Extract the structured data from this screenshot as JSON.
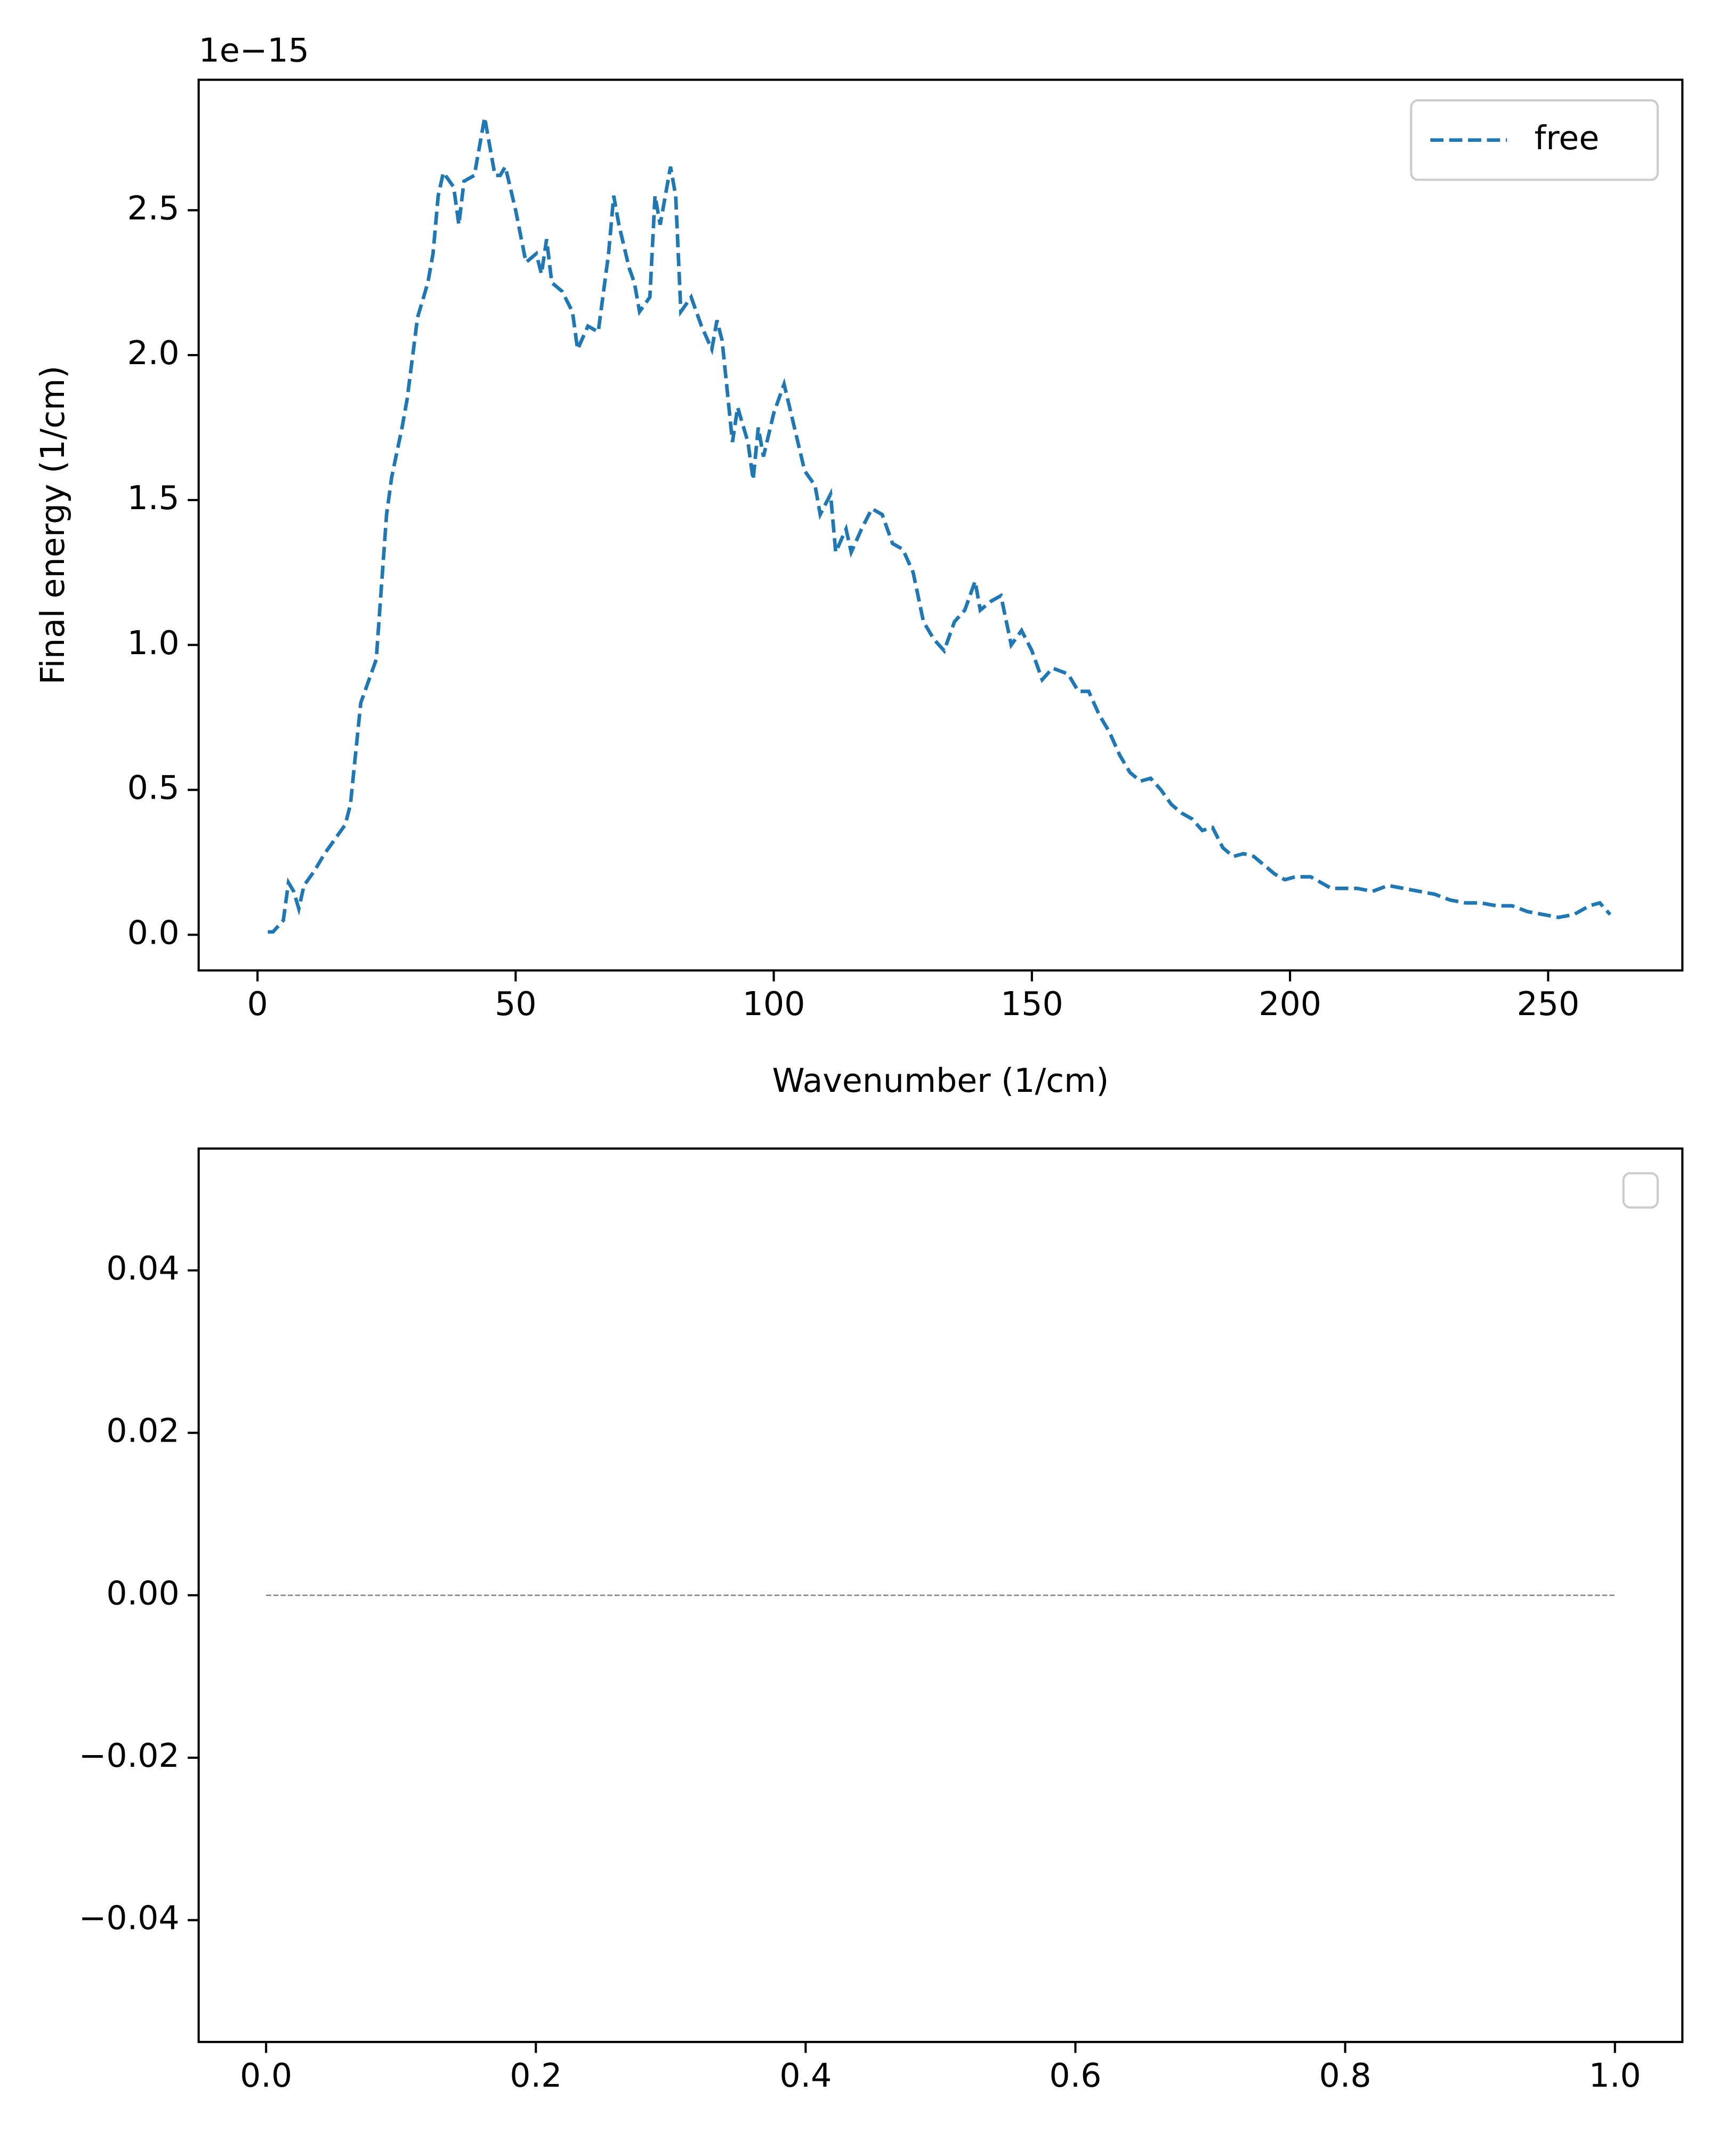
{
  "chart_data": [
    {
      "type": "line",
      "xlabel": "Wavenumber (1/cm)",
      "ylabel": "Final energy (1/cm)",
      "y_offset_label": "1e−15",
      "x": [
        2,
        3,
        5,
        6,
        7,
        8,
        9,
        11,
        13,
        15,
        17,
        18,
        20,
        21,
        22,
        23,
        25,
        26,
        28,
        29,
        31,
        33,
        34,
        35,
        36,
        38,
        39,
        40,
        42,
        44,
        45,
        46,
        47,
        48,
        50,
        52,
        54,
        55,
        56,
        57,
        59,
        61,
        62,
        64,
        66,
        68,
        69,
        70,
        72,
        73,
        74,
        76,
        77,
        78,
        79,
        80,
        81,
        82,
        84,
        86,
        88,
        89,
        90,
        92,
        93,
        95,
        96,
        97,
        98,
        100,
        102,
        104,
        106,
        108,
        109,
        111,
        112,
        114,
        115,
        117,
        119,
        121,
        123,
        125,
        127,
        129,
        131,
        133,
        135,
        137,
        139,
        140,
        142,
        144,
        146,
        148,
        150,
        152,
        154,
        157,
        159,
        161,
        163,
        165,
        167,
        169,
        171,
        173,
        175,
        177,
        179,
        181,
        183,
        185,
        187,
        189,
        191,
        193,
        195,
        197,
        199,
        201,
        204,
        206,
        208,
        210,
        213,
        216,
        219,
        222,
        225,
        228,
        231,
        234,
        237,
        240,
        243,
        246,
        249,
        252,
        255,
        258,
        260,
        262
      ],
      "series": [
        {
          "name": "free",
          "color": "#1f77b4",
          "linestyle": "dashed",
          "linewidth": 2.6,
          "values": [
            0.01,
            0.01,
            0.05,
            0.18,
            0.15,
            0.09,
            0.17,
            0.22,
            0.28,
            0.33,
            0.38,
            0.45,
            0.8,
            0.85,
            0.9,
            0.95,
            1.45,
            1.58,
            1.75,
            1.85,
            2.13,
            2.25,
            2.35,
            2.55,
            2.63,
            2.58,
            2.45,
            2.6,
            2.62,
            2.82,
            2.72,
            2.62,
            2.62,
            2.65,
            2.5,
            2.32,
            2.35,
            2.28,
            2.4,
            2.25,
            2.22,
            2.15,
            2.02,
            2.1,
            2.08,
            2.35,
            2.55,
            2.45,
            2.3,
            2.25,
            2.15,
            2.2,
            2.55,
            2.45,
            2.55,
            2.65,
            2.55,
            2.15,
            2.2,
            2.1,
            2.02,
            2.12,
            2.05,
            1.7,
            1.82,
            1.7,
            1.57,
            1.75,
            1.65,
            1.8,
            1.9,
            1.75,
            1.6,
            1.55,
            1.45,
            1.52,
            1.32,
            1.4,
            1.32,
            1.4,
            1.47,
            1.45,
            1.35,
            1.33,
            1.25,
            1.08,
            1.02,
            0.98,
            1.08,
            1.12,
            1.22,
            1.12,
            1.15,
            1.17,
            1.0,
            1.05,
            0.98,
            0.88,
            0.92,
            0.9,
            0.84,
            0.84,
            0.76,
            0.7,
            0.62,
            0.56,
            0.53,
            0.54,
            0.5,
            0.45,
            0.42,
            0.4,
            0.36,
            0.37,
            0.3,
            0.27,
            0.28,
            0.27,
            0.24,
            0.21,
            0.19,
            0.2,
            0.2,
            0.18,
            0.16,
            0.16,
            0.16,
            0.15,
            0.17,
            0.16,
            0.15,
            0.14,
            0.12,
            0.11,
            0.11,
            0.1,
            0.1,
            0.08,
            0.07,
            0.06,
            0.07,
            0.1,
            0.11,
            0.07
          ]
        }
      ],
      "xlim": [
        -11.4,
        276
      ],
      "ylim": [
        -0.123,
        2.95
      ],
      "xticks": [
        0,
        50,
        100,
        150,
        200,
        250
      ],
      "yticks": [
        {
          "value": 0,
          "label": "0.0"
        },
        0.5,
        {
          "value": 1,
          "label": "1.0"
        },
        1.5,
        {
          "value": 2,
          "label": "2.0"
        },
        2.5
      ],
      "legend": "upper right"
    },
    {
      "type": "line",
      "x": [
        0,
        1
      ],
      "series": [
        {
          "color": "#808080",
          "linestyle": "dashed",
          "linewidth": 1,
          "values": [
            0,
            0
          ]
        }
      ],
      "xlim": [
        -0.05,
        1.05
      ],
      "ylim": [
        -0.055,
        0.055
      ],
      "xticks": [
        {
          "value": 0,
          "label": "0.0"
        },
        0.2,
        0.4,
        0.6,
        0.8,
        {
          "value": 1,
          "label": "1.0"
        }
      ],
      "yticks": [
        {
          "value": -0.04,
          "label": "−0.04"
        },
        {
          "value": -0.02,
          "label": "−0.02"
        },
        {
          "value": 0,
          "label": "0.00"
        },
        0.02,
        0.04
      ],
      "legend": "upper right"
    }
  ]
}
